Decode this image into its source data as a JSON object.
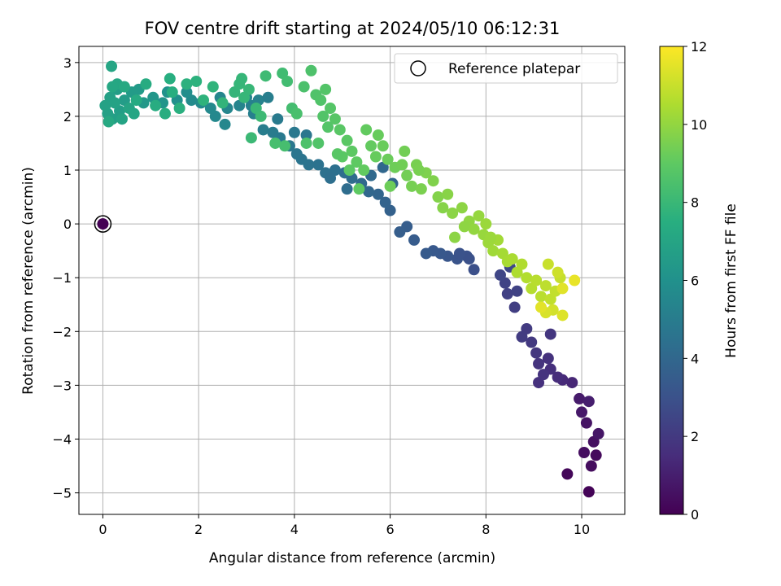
{
  "chart_data": {
    "type": "scatter",
    "title": "FOV centre drift starting at 2024/05/10 06:12:31",
    "xlabel": "Angular distance from reference (arcmin)",
    "ylabel": "Rotation from reference (arcmin)",
    "xlim": [
      -0.5,
      10.9
    ],
    "ylim": [
      -5.4,
      3.3
    ],
    "xticks": [
      0,
      2,
      4,
      6,
      8,
      10
    ],
    "yticks": [
      3,
      2,
      1,
      0,
      -1,
      -2,
      -3,
      -4,
      -5
    ],
    "grid": true,
    "legend": {
      "location": "upper right",
      "entries": [
        "Reference platepar"
      ]
    },
    "colorbar": {
      "label": "Hours from first FF file",
      "colormap": "viridis",
      "range": [
        0,
        12
      ],
      "ticks": [
        0,
        2,
        4,
        6,
        8,
        10,
        12
      ]
    },
    "reference_point": {
      "x": 0,
      "y": 0,
      "label": "Reference platepar"
    },
    "points": [
      [
        10.15,
        -4.98,
        0.1
      ],
      [
        10.3,
        -4.3,
        0.3
      ],
      [
        10.2,
        -4.5,
        0.4
      ],
      [
        10.25,
        -4.05,
        0.5
      ],
      [
        10.1,
        -3.7,
        0.6
      ],
      [
        10.35,
        -3.9,
        0.7
      ],
      [
        10.0,
        -3.5,
        0.8
      ],
      [
        9.95,
        -3.25,
        0.9
      ],
      [
        10.15,
        -3.3,
        1.0
      ],
      [
        9.7,
        -4.65,
        0.2
      ],
      [
        10.05,
        -4.25,
        0.45
      ],
      [
        9.8,
        -2.95,
        1.3
      ],
      [
        9.6,
        -2.9,
        1.4
      ],
      [
        9.5,
        -2.85,
        1.5
      ],
      [
        9.35,
        -2.7,
        1.6
      ],
      [
        9.3,
        -2.5,
        1.7
      ],
      [
        9.1,
        -2.6,
        1.8
      ],
      [
        9.05,
        -2.4,
        1.9
      ],
      [
        8.95,
        -2.2,
        2.0
      ],
      [
        9.35,
        -2.05,
        1.85
      ],
      [
        9.1,
        -2.95,
        1.65
      ],
      [
        8.85,
        -1.95,
        2.05
      ],
      [
        8.75,
        -2.1,
        2.1
      ],
      [
        8.6,
        -1.55,
        2.2
      ],
      [
        8.45,
        -1.3,
        2.3
      ],
      [
        8.4,
        -1.1,
        2.4
      ],
      [
        8.3,
        -0.95,
        2.5
      ],
      [
        8.65,
        -1.25,
        2.35
      ],
      [
        8.5,
        -0.8,
        2.6
      ],
      [
        9.2,
        -2.8,
        1.75
      ],
      [
        7.75,
        -0.85,
        2.9
      ],
      [
        7.6,
        -0.6,
        3.0
      ],
      [
        7.4,
        -0.65,
        3.1
      ],
      [
        7.2,
        -0.6,
        3.2
      ],
      [
        7.05,
        -0.55,
        3.3
      ],
      [
        6.9,
        -0.5,
        3.35
      ],
      [
        6.75,
        -0.55,
        3.4
      ],
      [
        6.5,
        -0.3,
        3.45
      ],
      [
        6.35,
        -0.05,
        3.5
      ],
      [
        6.2,
        -0.15,
        3.55
      ],
      [
        7.65,
        -0.65,
        2.95
      ],
      [
        7.45,
        -0.55,
        3.05
      ],
      [
        6.0,
        0.25,
        3.7
      ],
      [
        5.9,
        0.4,
        3.8
      ],
      [
        5.75,
        0.55,
        3.9
      ],
      [
        5.55,
        0.6,
        4.0
      ],
      [
        5.4,
        0.75,
        4.1
      ],
      [
        5.2,
        0.85,
        4.2
      ],
      [
        5.05,
        0.95,
        4.3
      ],
      [
        4.85,
        1.0,
        4.4
      ],
      [
        4.65,
        0.95,
        4.45
      ],
      [
        4.5,
        1.1,
        4.5
      ],
      [
        4.3,
        1.1,
        4.55
      ],
      [
        4.15,
        1.2,
        4.6
      ],
      [
        4.05,
        1.3,
        4.65
      ],
      [
        5.1,
        0.65,
        4.25
      ],
      [
        5.6,
        0.9,
        4.1
      ],
      [
        5.85,
        1.05,
        4.0
      ],
      [
        6.05,
        0.75,
        3.9
      ],
      [
        4.75,
        0.85,
        4.35
      ],
      [
        3.9,
        1.45,
        4.75
      ],
      [
        3.7,
        1.6,
        4.85
      ],
      [
        3.55,
        1.7,
        4.95
      ],
      [
        3.35,
        1.75,
        5.05
      ],
      [
        3.15,
        2.05,
        5.15
      ],
      [
        3.1,
        2.2,
        5.2
      ],
      [
        3.25,
        2.3,
        5.25
      ],
      [
        3.0,
        2.35,
        5.3
      ],
      [
        2.85,
        2.2,
        5.35
      ],
      [
        2.6,
        2.15,
        5.45
      ],
      [
        2.55,
        1.85,
        5.5
      ],
      [
        2.35,
        2.0,
        5.55
      ],
      [
        2.25,
        2.15,
        5.6
      ],
      [
        2.05,
        2.25,
        5.65
      ],
      [
        1.85,
        2.3,
        5.7
      ],
      [
        3.45,
        2.35,
        5.1
      ],
      [
        4.0,
        1.7,
        4.8
      ],
      [
        4.25,
        1.65,
        4.7
      ],
      [
        3.65,
        1.95,
        4.9
      ],
      [
        2.45,
        2.35,
        5.45
      ],
      [
        1.75,
        2.45,
        5.85
      ],
      [
        1.55,
        2.3,
        5.95
      ],
      [
        1.35,
        2.45,
        6.05
      ],
      [
        1.25,
        2.25,
        6.15
      ],
      [
        1.05,
        2.35,
        6.25
      ],
      [
        0.85,
        2.25,
        6.35
      ],
      [
        0.75,
        2.5,
        6.45
      ],
      [
        0.6,
        2.45,
        6.5
      ],
      [
        0.45,
        2.3,
        6.55
      ],
      [
        0.3,
        2.5,
        6.6
      ],
      [
        0.35,
        2.1,
        6.65
      ],
      [
        0.2,
        1.95,
        6.7
      ],
      [
        0.15,
        2.35,
        6.75
      ],
      [
        0.1,
        2.05,
        6.8
      ],
      [
        0.05,
        2.2,
        6.85
      ],
      [
        0.25,
        2.25,
        6.9
      ],
      [
        0.4,
        1.95,
        6.95
      ],
      [
        0.55,
        2.15,
        7.0
      ],
      [
        0.65,
        2.05,
        7.05
      ],
      [
        0.3,
        2.6,
        7.1
      ],
      [
        0.2,
        2.55,
        7.15
      ],
      [
        0.12,
        1.9,
        7.2
      ],
      [
        0.45,
        2.55,
        7.25
      ],
      [
        0.7,
        2.3,
        7.3
      ],
      [
        0.9,
        2.6,
        7.35
      ],
      [
        1.1,
        2.2,
        7.4
      ],
      [
        1.3,
        2.05,
        7.45
      ],
      [
        1.45,
        2.45,
        7.5
      ],
      [
        1.6,
        2.15,
        7.55
      ],
      [
        1.75,
        2.6,
        7.6
      ],
      [
        1.95,
        2.65,
        7.65
      ],
      [
        2.1,
        2.3,
        7.7
      ],
      [
        2.3,
        2.55,
        7.75
      ],
      [
        2.5,
        2.25,
        7.8
      ],
      [
        2.75,
        2.45,
        7.85
      ],
      [
        2.9,
        2.7,
        7.9
      ],
      [
        3.05,
        2.5,
        7.95
      ],
      [
        3.2,
        2.15,
        8.0
      ],
      [
        0.18,
        2.93,
        7.05
      ],
      [
        1.4,
        2.7,
        7.5
      ],
      [
        2.85,
        2.6,
        7.88
      ],
      [
        2.95,
        2.35,
        7.92
      ],
      [
        3.1,
        1.6,
        8.05
      ],
      [
        3.3,
        2.0,
        8.1
      ],
      [
        3.4,
        2.75,
        8.15
      ],
      [
        3.75,
        2.8,
        8.2
      ],
      [
        3.85,
        2.65,
        8.25
      ],
      [
        3.95,
        2.15,
        8.3
      ],
      [
        3.8,
        1.45,
        8.35
      ],
      [
        3.6,
        1.5,
        8.4
      ],
      [
        4.05,
        2.05,
        8.45
      ],
      [
        4.2,
        2.55,
        8.5
      ],
      [
        4.35,
        2.85,
        8.55
      ],
      [
        4.45,
        2.4,
        8.6
      ],
      [
        4.55,
        2.3,
        8.65
      ],
      [
        4.65,
        2.5,
        8.7
      ],
      [
        4.75,
        2.15,
        8.75
      ],
      [
        4.85,
        1.95,
        8.8
      ],
      [
        4.95,
        1.75,
        8.85
      ],
      [
        5.1,
        1.55,
        8.9
      ],
      [
        5.2,
        1.35,
        8.95
      ],
      [
        5.3,
        1.15,
        9.0
      ],
      [
        5.45,
        1.0,
        9.05
      ],
      [
        5.6,
        1.45,
        9.1
      ],
      [
        5.7,
        1.25,
        9.15
      ],
      [
        5.85,
        1.45,
        9.2
      ],
      [
        5.95,
        1.2,
        9.25
      ],
      [
        6.1,
        1.05,
        9.3
      ],
      [
        6.25,
        1.1,
        9.35
      ],
      [
        6.35,
        0.9,
        9.4
      ],
      [
        6.45,
        0.7,
        9.45
      ],
      [
        6.55,
        1.1,
        9.5
      ],
      [
        6.65,
        0.65,
        9.55
      ],
      [
        6.75,
        0.95,
        9.6
      ],
      [
        6.9,
        0.8,
        9.65
      ],
      [
        7.0,
        0.5,
        9.7
      ],
      [
        7.1,
        0.3,
        9.75
      ],
      [
        4.5,
        1.5,
        8.65
      ],
      [
        4.7,
        1.8,
        8.72
      ],
      [
        5.0,
        1.25,
        8.88
      ],
      [
        5.35,
        0.65,
        9.0
      ],
      [
        4.25,
        1.5,
        8.55
      ],
      [
        4.6,
        2.0,
        8.68
      ],
      [
        4.9,
        1.3,
        8.83
      ],
      [
        5.15,
        1.0,
        8.92
      ],
      [
        6.3,
        1.35,
        9.38
      ],
      [
        6.0,
        0.7,
        9.28
      ],
      [
        5.5,
        1.75,
        9.08
      ],
      [
        5.75,
        1.65,
        9.18
      ],
      [
        6.6,
        1.0,
        9.52
      ],
      [
        7.2,
        0.55,
        9.8
      ],
      [
        7.3,
        0.2,
        9.85
      ],
      [
        7.5,
        0.3,
        9.9
      ],
      [
        7.65,
        0.05,
        9.95
      ],
      [
        7.75,
        -0.1,
        10.0
      ],
      [
        7.85,
        0.15,
        10.05
      ],
      [
        7.95,
        -0.2,
        10.1
      ],
      [
        8.0,
        0.0,
        10.15
      ],
      [
        8.05,
        -0.35,
        10.2
      ],
      [
        8.15,
        -0.5,
        10.25
      ],
      [
        8.25,
        -0.3,
        10.3
      ],
      [
        8.35,
        -0.55,
        10.35
      ],
      [
        8.45,
        -0.7,
        10.4
      ],
      [
        8.55,
        -0.65,
        10.45
      ],
      [
        8.65,
        -0.9,
        10.5
      ],
      [
        8.75,
        -0.75,
        10.55
      ],
      [
        8.85,
        -1.0,
        10.6
      ],
      [
        8.95,
        -1.2,
        10.65
      ],
      [
        9.05,
        -1.05,
        10.7
      ],
      [
        9.15,
        -1.35,
        10.75
      ],
      [
        9.25,
        -1.15,
        10.8
      ],
      [
        9.35,
        -1.4,
        10.85
      ],
      [
        9.45,
        -1.25,
        10.9
      ],
      [
        9.55,
        -1.0,
        10.95
      ],
      [
        9.3,
        -0.75,
        11.0
      ],
      [
        9.5,
        -0.9,
        11.1
      ],
      [
        9.4,
        -1.6,
        11.2
      ],
      [
        9.25,
        -1.65,
        11.3
      ],
      [
        9.6,
        -1.7,
        11.4
      ],
      [
        9.85,
        -1.05,
        11.6
      ],
      [
        9.15,
        -1.55,
        11.5
      ],
      [
        9.6,
        -1.2,
        11.45
      ],
      [
        7.35,
        -0.25,
        9.88
      ],
      [
        7.55,
        -0.05,
        9.92
      ],
      [
        8.1,
        -0.25,
        10.18
      ]
    ]
  }
}
